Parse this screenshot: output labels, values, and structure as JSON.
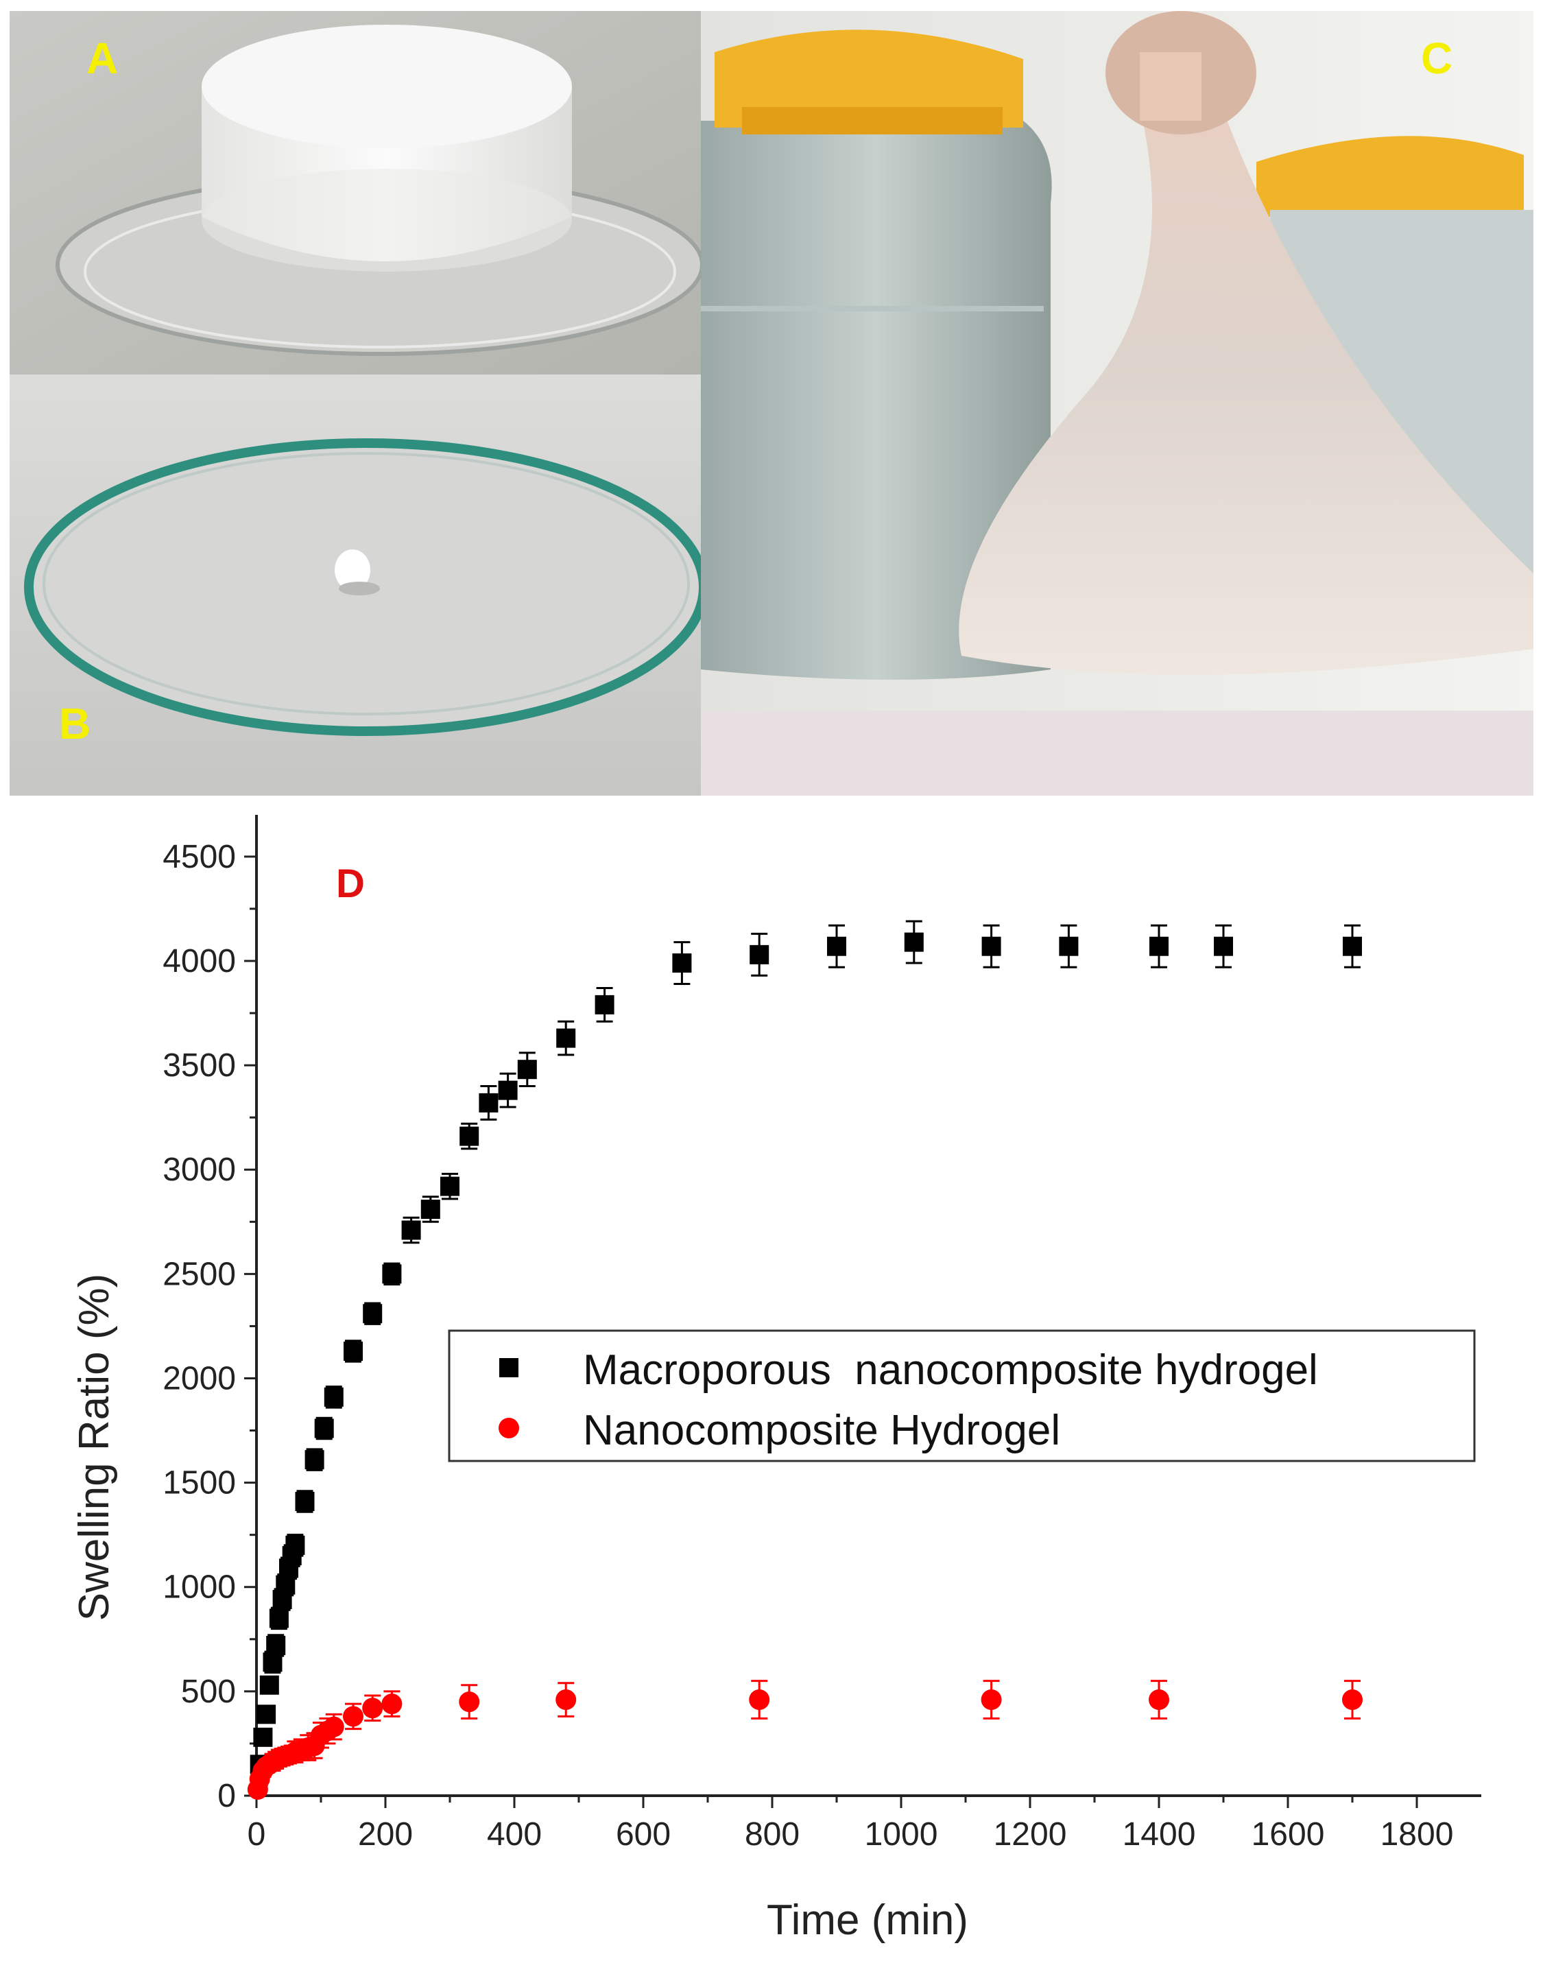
{
  "panels": {
    "a_label": "A",
    "b_label": "B",
    "c_label": "C",
    "d_label": "D"
  },
  "colors": {
    "macroporous": "#000000",
    "nanocomposite": "#ff0000",
    "panel_label_photo": "#f4f000",
    "panel_label_chart": "#e01010"
  },
  "chart_data": {
    "type": "scatter",
    "xlabel": "Time (min)",
    "ylabel": "Swelling Ratio (%)",
    "xlim": [
      0,
      1900
    ],
    "ylim": [
      0,
      4700
    ],
    "xticks": [
      0,
      200,
      400,
      600,
      800,
      1000,
      1200,
      1400,
      1600,
      1800
    ],
    "yticks": [
      0,
      500,
      1000,
      1500,
      2000,
      2500,
      3000,
      3500,
      4000,
      4500
    ],
    "grid": false,
    "legend_position": "center-right",
    "series": [
      {
        "name": "Macroporous  nanocomposite hydrogel",
        "marker": "square",
        "color": "#000000",
        "points": [
          {
            "x": 5,
            "y": 150,
            "err": 30
          },
          {
            "x": 10,
            "y": 280,
            "err": 40
          },
          {
            "x": 15,
            "y": 390,
            "err": 40
          },
          {
            "x": 20,
            "y": 530,
            "err": 40
          },
          {
            "x": 25,
            "y": 640,
            "err": 50
          },
          {
            "x": 30,
            "y": 720,
            "err": 50
          },
          {
            "x": 35,
            "y": 850,
            "err": 50
          },
          {
            "x": 40,
            "y": 940,
            "err": 50
          },
          {
            "x": 45,
            "y": 1010,
            "err": 50
          },
          {
            "x": 50,
            "y": 1090,
            "err": 50
          },
          {
            "x": 55,
            "y": 1150,
            "err": 50
          },
          {
            "x": 60,
            "y": 1200,
            "err": 50
          },
          {
            "x": 75,
            "y": 1410,
            "err": 50
          },
          {
            "x": 90,
            "y": 1610,
            "err": 50
          },
          {
            "x": 105,
            "y": 1760,
            "err": 50
          },
          {
            "x": 120,
            "y": 1910,
            "err": 50
          },
          {
            "x": 150,
            "y": 2130,
            "err": 50
          },
          {
            "x": 180,
            "y": 2310,
            "err": 50
          },
          {
            "x": 210,
            "y": 2500,
            "err": 50
          },
          {
            "x": 240,
            "y": 2710,
            "err": 60
          },
          {
            "x": 270,
            "y": 2810,
            "err": 60
          },
          {
            "x": 300,
            "y": 2920,
            "err": 60
          },
          {
            "x": 330,
            "y": 3160,
            "err": 60
          },
          {
            "x": 360,
            "y": 3320,
            "err": 80
          },
          {
            "x": 390,
            "y": 3380,
            "err": 80
          },
          {
            "x": 420,
            "y": 3480,
            "err": 80
          },
          {
            "x": 480,
            "y": 3630,
            "err": 80
          },
          {
            "x": 540,
            "y": 3790,
            "err": 80
          },
          {
            "x": 660,
            "y": 3990,
            "err": 100
          },
          {
            "x": 780,
            "y": 4030,
            "err": 100
          },
          {
            "x": 900,
            "y": 4070,
            "err": 100
          },
          {
            "x": 1020,
            "y": 4090,
            "err": 100
          },
          {
            "x": 1140,
            "y": 4070,
            "err": 100
          },
          {
            "x": 1260,
            "y": 4070,
            "err": 100
          },
          {
            "x": 1400,
            "y": 4070,
            "err": 100
          },
          {
            "x": 1500,
            "y": 4070,
            "err": 100
          },
          {
            "x": 1700,
            "y": 4070,
            "err": 100
          }
        ]
      },
      {
        "name": "Nanocomposite Hydrogel",
        "marker": "circle",
        "color": "#ff0000",
        "points": [
          {
            "x": 2,
            "y": 30,
            "err": 20
          },
          {
            "x": 5,
            "y": 80,
            "err": 30
          },
          {
            "x": 10,
            "y": 120,
            "err": 30
          },
          {
            "x": 15,
            "y": 140,
            "err": 30
          },
          {
            "x": 20,
            "y": 150,
            "err": 30
          },
          {
            "x": 25,
            "y": 160,
            "err": 40
          },
          {
            "x": 30,
            "y": 170,
            "err": 40
          },
          {
            "x": 35,
            "y": 180,
            "err": 40
          },
          {
            "x": 40,
            "y": 185,
            "err": 40
          },
          {
            "x": 45,
            "y": 190,
            "err": 40
          },
          {
            "x": 50,
            "y": 195,
            "err": 40
          },
          {
            "x": 55,
            "y": 200,
            "err": 40
          },
          {
            "x": 60,
            "y": 210,
            "err": 50
          },
          {
            "x": 70,
            "y": 220,
            "err": 50
          },
          {
            "x": 80,
            "y": 230,
            "err": 60
          },
          {
            "x": 90,
            "y": 240,
            "err": 60
          },
          {
            "x": 100,
            "y": 290,
            "err": 60
          },
          {
            "x": 110,
            "y": 310,
            "err": 60
          },
          {
            "x": 120,
            "y": 330,
            "err": 60
          },
          {
            "x": 150,
            "y": 380,
            "err": 60
          },
          {
            "x": 180,
            "y": 420,
            "err": 60
          },
          {
            "x": 210,
            "y": 440,
            "err": 60
          },
          {
            "x": 330,
            "y": 450,
            "err": 80
          },
          {
            "x": 480,
            "y": 460,
            "err": 80
          },
          {
            "x": 780,
            "y": 460,
            "err": 90
          },
          {
            "x": 1140,
            "y": 460,
            "err": 90
          },
          {
            "x": 1400,
            "y": 460,
            "err": 90
          },
          {
            "x": 1700,
            "y": 460,
            "err": 90
          }
        ]
      }
    ]
  }
}
